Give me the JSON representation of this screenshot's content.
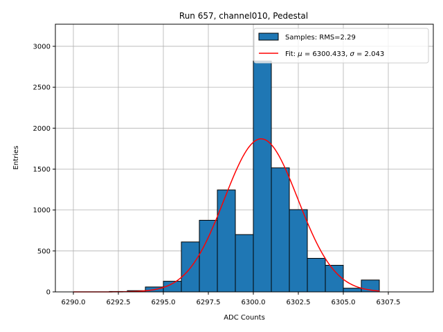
{
  "chart_data": {
    "type": "bar",
    "title": "Run 657, channel010, Pedestal",
    "xlabel": "ADC Counts",
    "ylabel": "Entries",
    "xlim": [
      6289.0,
      6310.0
    ],
    "ylim": [
      0,
      3270
    ],
    "xticks": [
      6290.0,
      6292.5,
      6295.0,
      6297.5,
      6300.0,
      6302.5,
      6305.0,
      6307.5
    ],
    "xtick_labels": [
      "6290.0",
      "6292.5",
      "6295.0",
      "6297.5",
      "6300.0",
      "6302.5",
      "6305.0",
      "6307.5"
    ],
    "yticks": [
      0,
      500,
      1000,
      1500,
      2000,
      2500,
      3000
    ],
    "ytick_labels": [
      "0",
      "500",
      "1000",
      "1500",
      "2000",
      "2500",
      "3000"
    ],
    "grid": true,
    "legend_position": "top-right",
    "histogram": {
      "name": "Samples: RMS=2.29",
      "color": "#1f77b4",
      "edge_color": "#000000",
      "bin_edges": [
        6290,
        6291,
        6292,
        6293,
        6294,
        6295,
        6296,
        6297,
        6298,
        6299,
        6300,
        6301,
        6302,
        6303,
        6304,
        6305,
        6306,
        6307
      ],
      "values": [
        0,
        0,
        5,
        15,
        60,
        130,
        610,
        875,
        1245,
        700,
        2820,
        1515,
        1005,
        410,
        325,
        45,
        145
      ]
    },
    "fit": {
      "name": "Fit: μ = 6300.433, σ = 2.043",
      "legend_prefix": "Fit: ",
      "mu_symbol": "μ",
      "mu_value": " = 6300.433, ",
      "sigma_symbol": "σ",
      "sigma_value": " = 2.043",
      "color": "#ff0000",
      "mu": 6300.433,
      "sigma": 2.043,
      "amplitude": 1870,
      "x_range": [
        6290,
        6307
      ]
    }
  }
}
